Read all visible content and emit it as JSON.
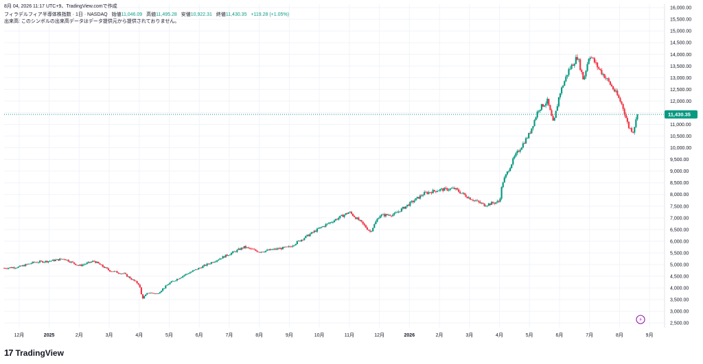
{
  "header": {
    "date_line": "8月 04, 2026 11:17 UTC+9、TradingView.comで作成",
    "symbol": "フィラデルフィア半導体株指数 · 1日 · NASDAQ",
    "open_label": "始値",
    "open": "11,046.09",
    "high_label": "高値",
    "high": "11,495.28",
    "low_label": "安値",
    "low": "10,922.31",
    "close_label": "終値",
    "close": "11,430.35",
    "change": "+119.28 (+1.05%)",
    "volume_note": "出来高: このシンボルの出来高データはデータ提供元から提供されておりません。"
  },
  "footer": {
    "brand": "TradingView",
    "logo": "17"
  },
  "colors": {
    "up": "#089981",
    "down": "#f23645",
    "last_price": "#089981",
    "grid": "#f0f3fa",
    "text": "#131722",
    "marker": "#9c27b0"
  },
  "price_tag": "11,430.35",
  "marker_icon": "lightning-icon",
  "chart_data": {
    "type": "candlestick",
    "y_axis_side": "right",
    "ylim": [
      2300,
      16150
    ],
    "y_ticks": [
      2500,
      3000,
      3500,
      4000,
      4500,
      5000,
      5500,
      6000,
      6500,
      7000,
      7500,
      8000,
      8500,
      9000,
      9500,
      10000,
      10500,
      11000,
      11500,
      12000,
      12500,
      13000,
      13500,
      14000,
      14500,
      15000,
      15500,
      16000
    ],
    "y_tick_labels": [
      "2,500.00",
      "3,000.00",
      "3,500.00",
      "4,000.00",
      "4,500.00",
      "5,000.00",
      "5,500.00",
      "6,000.00",
      "6,500.00",
      "7,000.00",
      "7,500.00",
      "8,000.00",
      "8,500.00",
      "9,000.00",
      "9,500.00",
      "10,000.00",
      "10,500.00",
      "11,000.00",
      "11,500.00",
      "12,000.00",
      "12,500.00",
      "13,000.00",
      "13,500.00",
      "14,000.00",
      "14,500.00",
      "15,000.00",
      "15,500.00",
      "16,000.00"
    ],
    "x_labels": [
      "12月",
      "2025",
      "2月",
      "3月",
      "4月",
      "5月",
      "6月",
      "7月",
      "8月",
      "9月",
      "10月",
      "11月",
      "12月",
      "2026",
      "2月",
      "3月",
      "4月",
      "5月",
      "6月",
      "7月",
      "8月",
      "9月"
    ],
    "x_label_bold": [
      false,
      true,
      false,
      false,
      false,
      false,
      false,
      false,
      false,
      false,
      false,
      false,
      false,
      true,
      false,
      false,
      false,
      false,
      false,
      false,
      false,
      false
    ],
    "x_label_month": [
      0,
      1,
      2,
      3,
      4,
      5,
      6,
      7,
      8,
      9,
      10,
      11,
      12,
      13,
      14,
      15,
      16,
      17,
      18,
      19,
      20,
      21
    ],
    "x_domain_months": [
      -0.5,
      21.5
    ],
    "last_close": 11430.35,
    "price_path": [
      [
        -0.5,
        4850
      ],
      [
        0,
        4900
      ],
      [
        0.5,
        5100
      ],
      [
        1,
        5150
      ],
      [
        1.5,
        5250
      ],
      [
        2,
        4950
      ],
      [
        2.5,
        5150
      ],
      [
        3,
        4750
      ],
      [
        3.5,
        4600
      ],
      [
        4,
        4150
      ],
      [
        4.1,
        3550
      ],
      [
        4.3,
        3800
      ],
      [
        4.6,
        3750
      ],
      [
        5,
        4200
      ],
      [
        5.5,
        4550
      ],
      [
        6,
        4850
      ],
      [
        6.5,
        5150
      ],
      [
        7,
        5450
      ],
      [
        7.5,
        5750
      ],
      [
        8,
        5550
      ],
      [
        8.5,
        5650
      ],
      [
        9,
        5750
      ],
      [
        9.5,
        6150
      ],
      [
        10,
        6550
      ],
      [
        10.5,
        6900
      ],
      [
        11,
        7250
      ],
      [
        11.4,
        6800
      ],
      [
        11.7,
        6400
      ],
      [
        12,
        7100
      ],
      [
        12.5,
        7150
      ],
      [
        13,
        7600
      ],
      [
        13.5,
        8050
      ],
      [
        14,
        8200
      ],
      [
        14.5,
        8250
      ],
      [
        15,
        7850
      ],
      [
        15.5,
        7550
      ],
      [
        16,
        7700
      ],
      [
        16.1,
        8500
      ],
      [
        16.5,
        9600
      ],
      [
        17,
        10600
      ],
      [
        17.3,
        11650
      ],
      [
        17.6,
        12000
      ],
      [
        17.8,
        11000
      ],
      [
        18,
        12300
      ],
      [
        18.3,
        13300
      ],
      [
        18.6,
        13900
      ],
      [
        18.8,
        12900
      ],
      [
        19,
        14000
      ],
      [
        19.3,
        13400
      ],
      [
        19.6,
        12900
      ],
      [
        19.9,
        12300
      ],
      [
        20.1,
        11800
      ],
      [
        20.3,
        10900
      ],
      [
        20.45,
        10700
      ],
      [
        20.6,
        11430
      ]
    ],
    "volatility_pct": 1.1,
    "event_marker": {
      "month": 20.7,
      "value": 2650
    }
  }
}
